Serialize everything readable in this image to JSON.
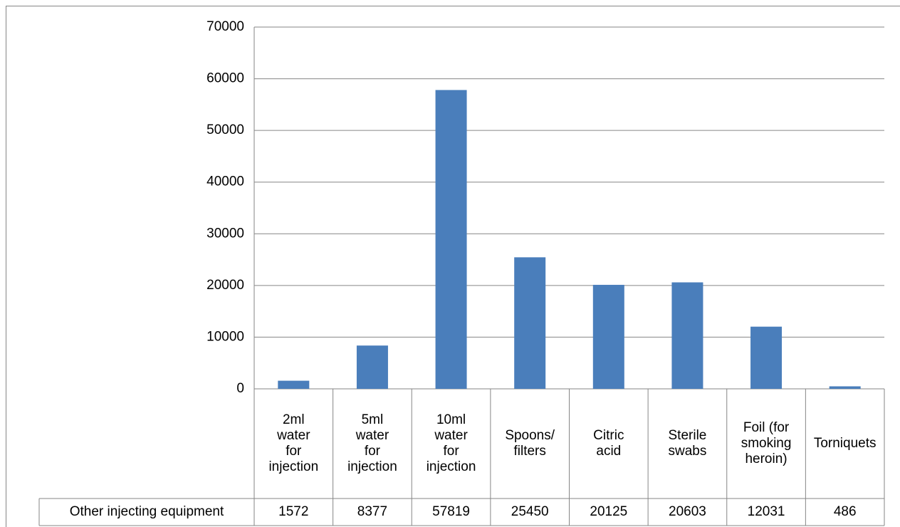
{
  "chart_data": {
    "type": "bar",
    "categories": [
      "2ml water for injection",
      "5ml water for injection",
      "10ml water for injection",
      "Spoons/ filters",
      "Citric acid",
      "Sterile swabs",
      "Foil (for smoking heroin)",
      "Torniquets"
    ],
    "series": [
      {
        "name": "Other injecting equipment",
        "color": "#4a7ebb",
        "values": [
          1572,
          8377,
          57819,
          25450,
          20125,
          20603,
          12031,
          486
        ]
      }
    ],
    "ylim": [
      0,
      70000
    ],
    "yticks": [
      0,
      10000,
      20000,
      30000,
      40000,
      50000,
      60000,
      70000
    ],
    "grid": true,
    "data_table": true
  }
}
